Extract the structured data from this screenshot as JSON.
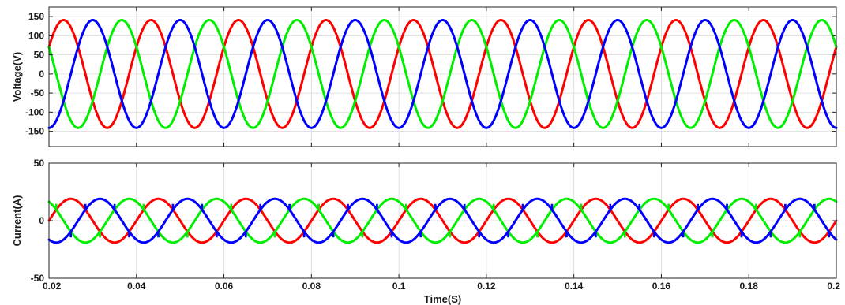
{
  "chart_data": [
    {
      "type": "line",
      "title": "",
      "xlabel": "",
      "ylabel": "Voltage(V)",
      "xlim": [
        0.02,
        0.2
      ],
      "ylim": [
        -190,
        175
      ],
      "yticks": [
        150,
        100,
        50,
        0,
        -50,
        -100,
        -150
      ],
      "xticks": [
        0.02,
        0.04,
        0.06,
        0.08,
        0.1,
        0.12,
        0.14,
        0.16,
        0.18,
        0.2
      ],
      "show_xtick_labels": false,
      "grid": true,
      "frequency_hz": 50,
      "series": [
        {
          "color": "#ff0000",
          "amplitude": 141,
          "phase_deg": 30
        },
        {
          "color": "#00ee00",
          "amplitude": 141,
          "phase_deg": 150
        },
        {
          "color": "#0000ff",
          "amplitude": 141,
          "phase_deg": -90
        }
      ]
    },
    {
      "type": "line",
      "title": "",
      "xlabel": "Time(S)",
      "ylabel": "Current(A)",
      "xlim": [
        0.02,
        0.2
      ],
      "ylim": [
        -50,
        50
      ],
      "yticks": [
        50,
        0,
        -50
      ],
      "xticks": [
        0.02,
        0.04,
        0.06,
        0.08,
        0.1,
        0.12,
        0.14,
        0.16,
        0.18,
        0.2
      ],
      "xtick_labels": [
        "0.02",
        "0.04",
        "0.06",
        "0.08",
        "0.1",
        "0.12",
        "0.14",
        "0.16",
        "0.18",
        "0.2"
      ],
      "show_xtick_labels": true,
      "grid": true,
      "frequency_hz": 50,
      "series": [
        {
          "color": "#ff0000",
          "amplitude": 19,
          "phase_deg": 0,
          "spike_amplitude": 5
        },
        {
          "color": "#00ee00",
          "amplitude": 19,
          "phase_deg": 120,
          "spike_amplitude": 5
        },
        {
          "color": "#0000ff",
          "amplitude": 19,
          "phase_deg": -120,
          "spike_amplitude": 5
        }
      ]
    }
  ]
}
